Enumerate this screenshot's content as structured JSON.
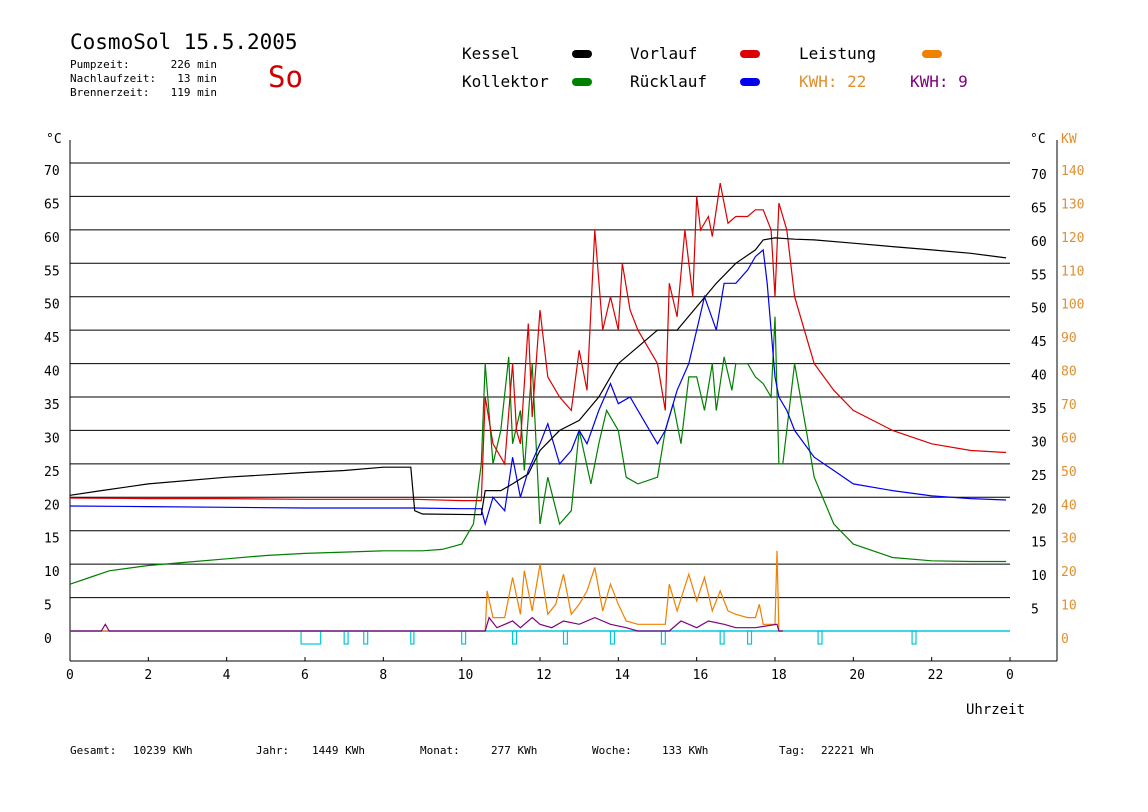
{
  "header": {
    "title": "CosmoSol 15.5.2005",
    "day": "So",
    "stats": [
      {
        "label": "Pumpzeit:",
        "value": "226 min"
      },
      {
        "label": "Nachlaufzeit:",
        "value": "13 min"
      },
      {
        "label": "Brennerzeit:",
        "value": "119 min"
      }
    ]
  },
  "legend": {
    "items": [
      {
        "label": "Kessel",
        "color": "#000000"
      },
      {
        "label": "Vorlauf",
        "color": "#dd0000"
      },
      {
        "label": "Leistung",
        "color": "#f08000"
      },
      {
        "label": "Kollektor",
        "color": "#008000"
      },
      {
        "label": "Rücklauf",
        "color": "#0000ee"
      }
    ],
    "kwh_orange": "KWH: 22",
    "kwh_purple": "KWH: 9"
  },
  "footer": [
    {
      "label": "Gesamt:",
      "value": "10239 KWh"
    },
    {
      "label": "Jahr:",
      "value": "1449 KWh"
    },
    {
      "label": "Monat:",
      "value": "277 KWh"
    },
    {
      "label": "Woche:",
      "value": "133 KWh"
    },
    {
      "label": "Tag:",
      "value": "22221 Wh"
    }
  ],
  "chart_data": {
    "type": "line",
    "xlabel": "Uhrzeit",
    "ylabel_left": "°C",
    "ylabel_right_temp": "°C",
    "ylabel_right_power": "KW",
    "xlim": [
      0,
      24
    ],
    "ylim": [
      0,
      70
    ],
    "y2lim": [
      0,
      140
    ],
    "x_ticks": [
      "0",
      "2",
      "4",
      "6",
      "8",
      "10",
      "12",
      "14",
      "16",
      "18",
      "20",
      "22",
      "0"
    ],
    "y_ticks_left": [
      "0",
      "5",
      "10",
      "15",
      "20",
      "25",
      "30",
      "35",
      "40",
      "45",
      "50",
      "55",
      "60",
      "65",
      "70"
    ],
    "y_ticks_right_temp": [
      "5",
      "10",
      "15",
      "20",
      "25",
      "30",
      "35",
      "40",
      "45",
      "50",
      "55",
      "60",
      "65",
      "70"
    ],
    "y_ticks_right_power": [
      "0",
      "10",
      "20",
      "30",
      "40",
      "50",
      "60",
      "70",
      "80",
      "90",
      "100",
      "110",
      "120",
      "130",
      "140"
    ],
    "grid": true,
    "series": [
      {
        "name": "Kessel",
        "color": "#000000",
        "x": [
          0,
          0.8,
          2,
          4,
          6,
          7,
          8,
          8.7,
          8.8,
          9,
          10.5,
          10.6,
          11,
          11.3,
          11.7,
          12,
          12.5,
          13,
          13.5,
          14,
          14.5,
          15,
          15.5,
          16,
          16.5,
          17,
          17.5,
          17.7,
          18,
          18.5,
          19,
          20,
          21,
          22,
          23,
          23.9
        ],
        "y": [
          20.3,
          21,
          22,
          23,
          23.7,
          24,
          24.5,
          24.5,
          18,
          17.5,
          17.4,
          21,
          21,
          22,
          23.5,
          27,
          30,
          31.5,
          35,
          40,
          42.5,
          45,
          45,
          48.5,
          52,
          55,
          57,
          58.5,
          58.8,
          58.6,
          58.5,
          58,
          57.5,
          57,
          56.5,
          55.8
        ]
      },
      {
        "name": "Vorlauf",
        "color": "#dd0000",
        "x": [
          0,
          2,
          4,
          6,
          8,
          8.8,
          10,
          10.5,
          10.6,
          10.8,
          11.1,
          11.3,
          11.4,
          11.5,
          11.7,
          11.8,
          12,
          12.2,
          12.5,
          12.8,
          13,
          13.2,
          13.4,
          13.6,
          13.8,
          14,
          14.1,
          14.3,
          14.5,
          15,
          15.2,
          15.3,
          15.5,
          15.7,
          15.9,
          16,
          16.1,
          16.3,
          16.4,
          16.6,
          16.8,
          17,
          17.3,
          17.5,
          17.7,
          17.9,
          18,
          18.1,
          18.3,
          18.5,
          19,
          19.5,
          20,
          21,
          22,
          23,
          23.9
        ],
        "y": [
          19.9,
          19.8,
          19.8,
          19.7,
          19.7,
          19.7,
          19.5,
          19.5,
          35,
          28,
          25,
          40,
          30,
          28,
          46,
          32,
          48,
          38,
          35,
          33,
          42,
          36,
          60,
          45,
          50,
          45,
          55,
          48,
          45,
          40,
          33,
          52,
          47,
          60,
          50,
          65,
          60,
          62,
          59,
          67,
          61,
          62,
          62,
          63,
          63,
          60,
          50,
          64,
          60,
          50,
          40,
          36,
          33,
          30,
          28,
          27,
          26.7
        ]
      },
      {
        "name": "Rücklauf",
        "color": "#0000ee",
        "x": [
          0,
          2,
          4,
          6,
          8,
          8.8,
          10,
          10.5,
          10.6,
          10.8,
          11.1,
          11.3,
          11.5,
          11.7,
          12,
          12.2,
          12.5,
          12.8,
          13,
          13.2,
          13.5,
          13.8,
          14,
          14.3,
          14.6,
          15,
          15.2,
          15.5,
          15.8,
          16,
          16.2,
          16.5,
          16.7,
          17,
          17.3,
          17.5,
          17.7,
          17.8,
          18,
          18.1,
          18.3,
          18.5,
          19,
          19.5,
          20,
          21,
          22,
          23,
          23.9
        ],
        "y": [
          18.7,
          18.6,
          18.5,
          18.4,
          18.4,
          18.4,
          18.3,
          18.3,
          16,
          20,
          18,
          26,
          20,
          24,
          28,
          31,
          25,
          27,
          30,
          28,
          33,
          37,
          34,
          35,
          32,
          28,
          30,
          36,
          40,
          45,
          50,
          45,
          52,
          52,
          54,
          56,
          57,
          52,
          38,
          35,
          33,
          30,
          26,
          24,
          22,
          21,
          20.2,
          19.8,
          19.6
        ]
      },
      {
        "name": "Kollektor",
        "color": "#008000",
        "x": [
          0,
          0.5,
          1,
          2,
          3,
          4,
          5,
          6,
          7,
          8,
          9,
          9.5,
          10,
          10.3,
          10.5,
          10.6,
          10.8,
          11,
          11.2,
          11.3,
          11.5,
          11.6,
          11.8,
          12,
          12.2,
          12.5,
          12.8,
          13,
          13.3,
          13.5,
          13.7,
          14,
          14.2,
          14.5,
          15,
          15.2,
          15.4,
          15.6,
          15.8,
          16,
          16.2,
          16.4,
          16.5,
          16.7,
          16.9,
          17,
          17.3,
          17.5,
          17.7,
          17.9,
          18,
          18.1,
          18.2,
          18.5,
          18.8,
          19,
          19.5,
          20,
          21,
          22,
          23,
          23.9
        ],
        "y": [
          7,
          8,
          9,
          9.8,
          10.3,
          10.8,
          11.3,
          11.6,
          11.8,
          12,
          12,
          12.2,
          13,
          16,
          25,
          40,
          25,
          30,
          41,
          28,
          33,
          24,
          40,
          16,
          23,
          16,
          18,
          30,
          22,
          28,
          33,
          30,
          23,
          22,
          23,
          30,
          34,
          28,
          38,
          38,
          33,
          40,
          33,
          41,
          36,
          40,
          40,
          38,
          37,
          35,
          47,
          25,
          25,
          40,
          30,
          23,
          16,
          13,
          11,
          10.5,
          10.4,
          10.4
        ]
      }
    ],
    "power_series": [
      {
        "name": "Leistung",
        "color": "#f08000",
        "x": [
          0,
          10.6,
          10.65,
          10.8,
          11.1,
          11.3,
          11.5,
          11.6,
          11.8,
          12,
          12.2,
          12.4,
          12.6,
          12.8,
          13,
          13.2,
          13.4,
          13.6,
          13.8,
          14,
          14.2,
          14.5,
          15.2,
          15.3,
          15.5,
          15.8,
          16,
          16.2,
          16.4,
          16.6,
          16.8,
          17,
          17.3,
          17.5,
          17.6,
          17.7,
          18,
          18.05,
          18.1,
          18.2
        ],
        "y": [
          0,
          0,
          12,
          4,
          4,
          16,
          5,
          18,
          6,
          20,
          5,
          8,
          17,
          5,
          8,
          12,
          19,
          6,
          14,
          8,
          3,
          2,
          2,
          14,
          6,
          17,
          9,
          16,
          6,
          12,
          6,
          5,
          4,
          4,
          8,
          2,
          2,
          24,
          0,
          0
        ]
      },
      {
        "name": "KWH: 9",
        "color": "#800080",
        "x": [
          0,
          0.8,
          0.9,
          1,
          10.6,
          10.7,
          10.9,
          11.3,
          11.5,
          11.8,
          12,
          12.3,
          12.6,
          13,
          13.4,
          13.8,
          14.2,
          14.5,
          15.3,
          15.6,
          16,
          16.3,
          16.7,
          17,
          17.5,
          18.05,
          18.1,
          18.2
        ],
        "y": [
          0,
          0,
          2,
          0,
          0,
          4,
          1,
          3,
          1,
          4,
          2,
          1,
          3,
          2,
          4,
          2,
          1,
          0,
          0,
          3,
          1,
          3,
          2,
          1,
          1,
          2,
          0,
          0
        ]
      }
    ],
    "pump_indicator": {
      "color": "#00c8d8",
      "x": [
        5.9,
        6.15,
        6.2,
        6.3,
        7,
        7.1,
        7.5,
        7.6,
        8.7,
        8.75,
        10,
        10.05,
        11.3,
        11.35,
        12.6,
        12.65,
        13.8,
        13.85,
        15.1,
        15.15,
        16.6,
        16.65,
        17.3,
        17.35,
        19.1,
        19.15,
        21.5,
        21.55
      ],
      "width_hours": [
        0.5,
        0,
        0,
        0,
        0.1,
        0,
        0.1,
        0,
        0.08,
        0,
        0.1,
        0,
        0.1,
        0,
        0.1,
        0,
        0.1,
        0,
        0.1,
        0,
        0.1,
        0,
        0.1,
        0,
        0.1,
        0,
        0.1,
        0
      ]
    }
  }
}
